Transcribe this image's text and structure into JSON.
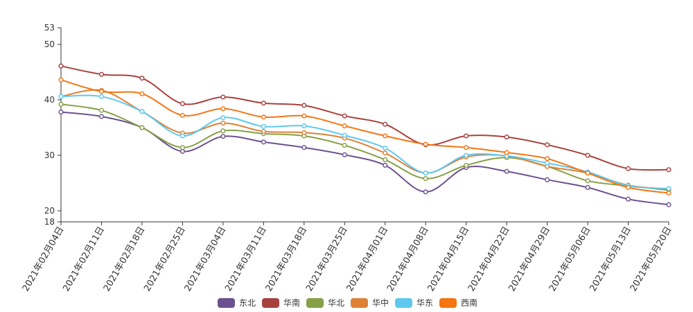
{
  "chart_data": {
    "type": "line",
    "title": "",
    "xlabel": "",
    "ylabel": "",
    "ylim": [
      18,
      53
    ],
    "yticks": [
      18,
      20,
      30,
      40,
      50,
      53
    ],
    "grid": false,
    "legend_position": "bottom",
    "categories": [
      "2021年02月04日",
      "2021年02月11日",
      "2021年02月18日",
      "2021年02月25日",
      "2021年03月04日",
      "2021年03月11日",
      "2021年03月18日",
      "2021年03月25日",
      "2021年04月01日",
      "2021年04月08日",
      "2021年04月15日",
      "2021年04月22日",
      "2021年04月29日",
      "2021年05月06日",
      "2021年05月13日",
      "2021年05月20日"
    ],
    "series": [
      {
        "name": "东北",
        "color": "#6b5190",
        "values": [
          37.8,
          37.0,
          35.0,
          30.7,
          33.4,
          32.4,
          31.4,
          30.1,
          28.2,
          23.4,
          27.8,
          27.1,
          25.6,
          24.2,
          22.1,
          21.1
        ]
      },
      {
        "name": "华南",
        "color": "#a8413d",
        "values": [
          46.1,
          44.6,
          43.9,
          39.3,
          40.5,
          39.4,
          39.0,
          37.1,
          35.6,
          31.9,
          33.5,
          33.3,
          31.9,
          30.0,
          27.6,
          27.4
        ]
      },
      {
        "name": "华北",
        "color": "#86a046",
        "values": [
          39.2,
          38.1,
          35.0,
          31.4,
          34.4,
          33.9,
          33.5,
          31.8,
          29.2,
          25.8,
          28.2,
          29.6,
          28.0,
          25.4,
          24.5,
          23.7
        ]
      },
      {
        "name": "华中",
        "color": "#de8135",
        "values": [
          40.6,
          41.7,
          37.9,
          34.0,
          35.8,
          34.3,
          34.1,
          33.1,
          30.4,
          26.8,
          29.7,
          29.9,
          28.0,
          26.8,
          24.6,
          23.9
        ]
      },
      {
        "name": "华东",
        "color": "#5ec8ef",
        "values": [
          40.6,
          40.6,
          37.9,
          33.5,
          36.8,
          35.2,
          35.3,
          33.6,
          31.3,
          26.8,
          30.0,
          29.9,
          28.6,
          27.0,
          24.5,
          24.0
        ]
      },
      {
        "name": "西南",
        "color": "#f57511",
        "values": [
          43.6,
          41.5,
          41.1,
          37.2,
          38.4,
          36.9,
          37.1,
          35.3,
          33.5,
          32.0,
          31.4,
          30.5,
          29.4,
          26.8,
          24.2,
          23.2
        ]
      }
    ]
  }
}
